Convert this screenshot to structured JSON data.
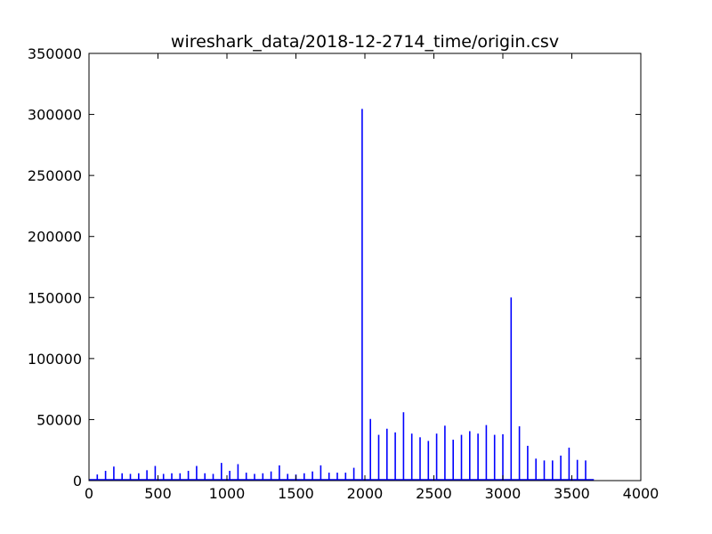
{
  "chart_data": {
    "type": "bar",
    "title": "wireshark_data/2018-12-2714_time/origin.csv",
    "xlabel": "",
    "ylabel": "",
    "xlim": [
      0,
      4000
    ],
    "ylim": [
      0,
      350000
    ],
    "x_ticks": [
      0,
      500,
      1000,
      1500,
      2000,
      2500,
      3000,
      3500,
      4000
    ],
    "y_ticks": [
      0,
      50000,
      100000,
      150000,
      200000,
      250000,
      300000,
      350000
    ],
    "x_tick_labels": [
      "0",
      "500",
      "1000",
      "1500",
      "2000",
      "2500",
      "3000",
      "3500",
      "4000"
    ],
    "y_tick_labels": [
      "0",
      "50000",
      "100000",
      "150000",
      "200000",
      "250000",
      "300000",
      "350000"
    ],
    "grid": false,
    "bar_color": "#0000ff",
    "baseline_end": 3660,
    "x": [
      60,
      120,
      180,
      240,
      300,
      360,
      420,
      480,
      540,
      600,
      660,
      720,
      780,
      840,
      900,
      960,
      1020,
      1080,
      1140,
      1200,
      1260,
      1320,
      1380,
      1440,
      1500,
      1560,
      1620,
      1680,
      1740,
      1800,
      1860,
      1920,
      1980,
      2040,
      2100,
      2160,
      2220,
      2280,
      2340,
      2400,
      2460,
      2520,
      2580,
      2640,
      2700,
      2760,
      2820,
      2880,
      2940,
      3000,
      3060,
      3120,
      3180,
      3240,
      3300,
      3360,
      3420,
      3480,
      3540,
      3600
    ],
    "values": [
      5000,
      8000,
      11500,
      6000,
      5500,
      6000,
      8500,
      12000,
      5500,
      6000,
      6000,
      8000,
      12000,
      6000,
      5500,
      14500,
      8000,
      13500,
      6500,
      5500,
      6000,
      7500,
      12500,
      5500,
      5000,
      6000,
      7500,
      12500,
      6500,
      6500,
      6500,
      10500,
      304500,
      50500,
      37500,
      42500,
      39500,
      56000,
      38500,
      35500,
      32500,
      38500,
      45000,
      33500,
      37500,
      40500,
      38500,
      45500,
      37500,
      38000,
      150000,
      44500,
      28500,
      18000,
      16500,
      16500,
      20500,
      27000,
      17000,
      16500
    ]
  }
}
